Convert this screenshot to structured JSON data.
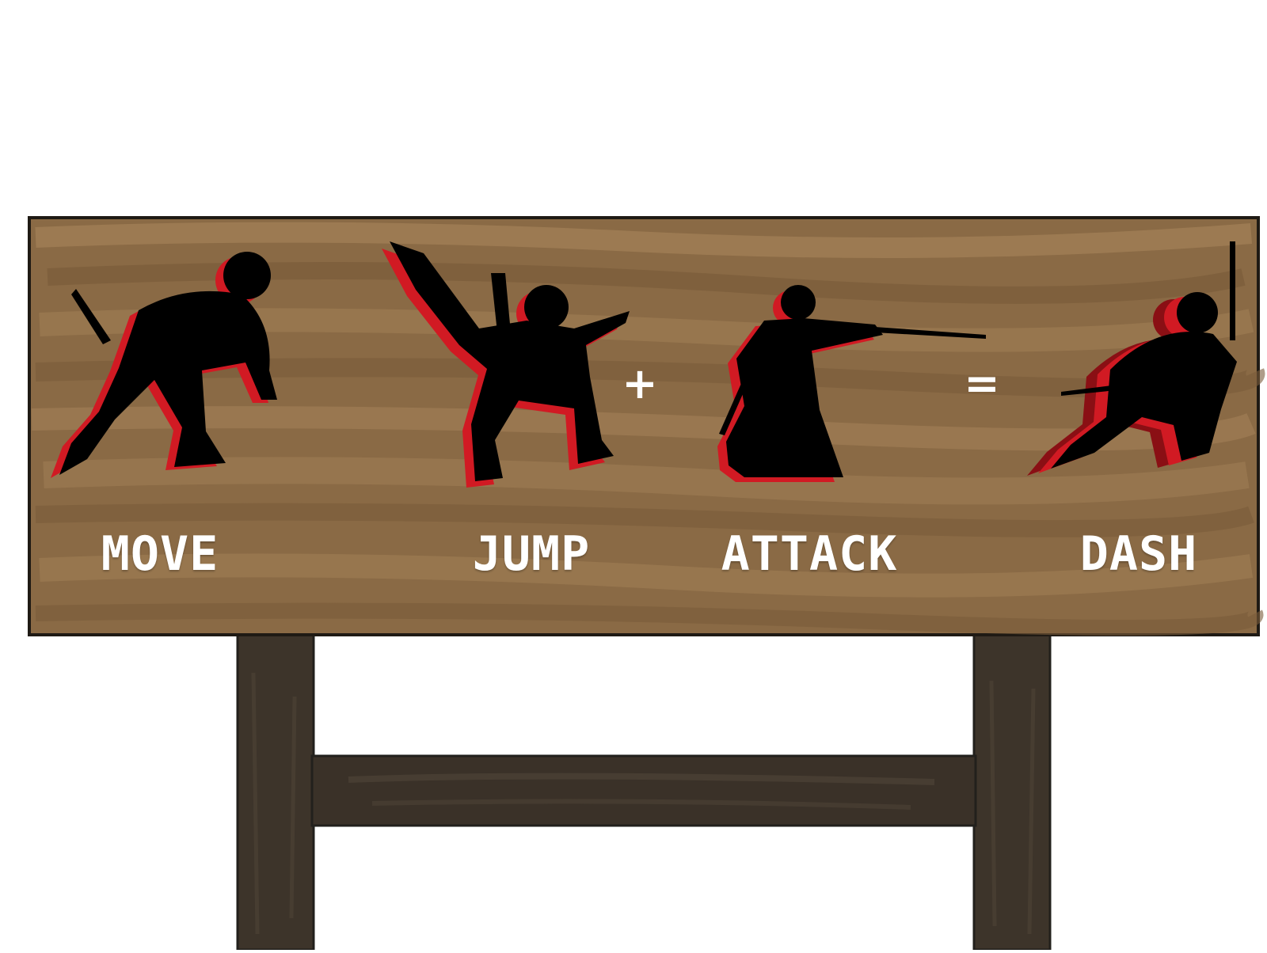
{
  "sign": {
    "labels": {
      "move": "MOVE",
      "jump": "JUMP",
      "attack": "ATTACK",
      "dash": "DASH"
    },
    "operators": {
      "plus": "+",
      "equals": "="
    }
  },
  "colors": {
    "wood_light": "#a07e55",
    "wood_mid": "#8a6a45",
    "wood_dark": "#7a5c3a",
    "post": "#3d342a",
    "silhouette": "#000000",
    "outline_red": "#d11a23",
    "label_text": "#ffffff"
  },
  "icons": [
    "ninja-move-icon",
    "ninja-jump-icon",
    "ninja-attack-icon",
    "ninja-dash-icon"
  ]
}
